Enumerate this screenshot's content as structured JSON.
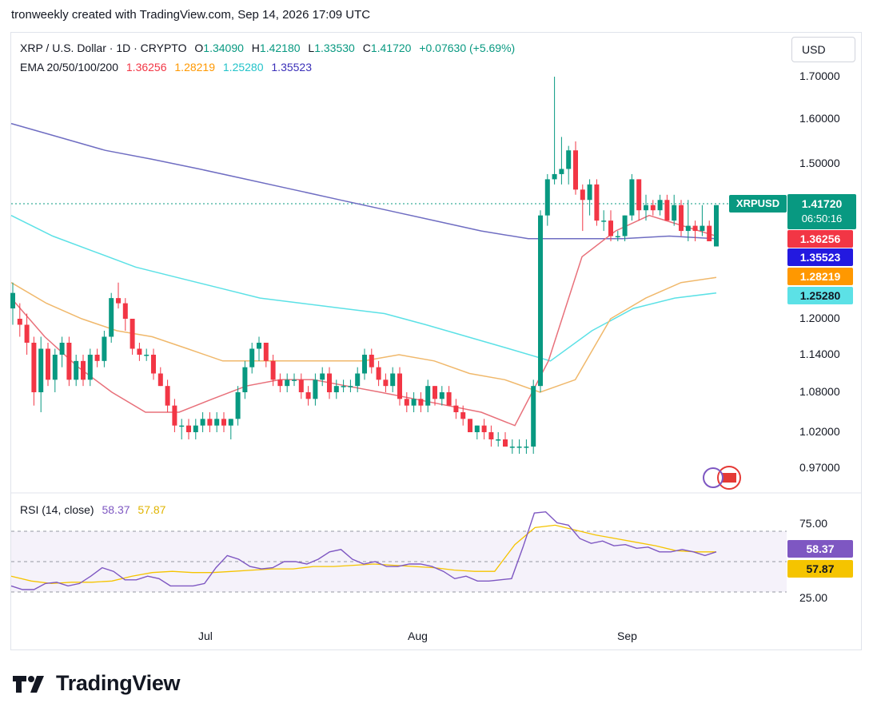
{
  "header": "tronweekly created with TradingView.com, Sep 14, 2026 17:09 UTC",
  "legend": {
    "symbol": "XRP / U.S. Dollar · 1D · CRYPTO",
    "O_label": "O",
    "O": "1.34090",
    "H_label": "H",
    "H": "1.42180",
    "L_label": "L",
    "L": "1.33530",
    "C_label": "C",
    "C": "1.41720",
    "change": "+0.07630 (+5.69%)",
    "ema_label": "EMA 20/50/100/200",
    "ema20": "1.36256",
    "ema50": "1.28219",
    "ema100": "1.25280",
    "ema200": "1.35523"
  },
  "rsi_legend": {
    "label": "RSI (14, close)",
    "rsi": "58.37",
    "ma": "57.87"
  },
  "currency": "USD",
  "price_ticks": [
    "1.70000",
    "1.60000",
    "1.50000",
    "1.20000",
    "1.14000",
    "1.08000",
    "1.02000",
    "0.97000"
  ],
  "rsi_ticks": [
    "75.00",
    "25.00"
  ],
  "tags": {
    "symbol": "XRPUSD",
    "last": "1.41720",
    "countdown": "06:50:16",
    "ema20": "1.36256",
    "ema200": "1.35523",
    "ema50": "1.28219",
    "ema100": "1.25280",
    "rsi": "58.37",
    "rsi_ma": "57.87"
  },
  "months": [
    "Jul",
    "Aug",
    "Sep"
  ],
  "brand": "TradingView",
  "colors": {
    "up": "#089981",
    "down": "#f23645",
    "ema20": "#f23645",
    "ema50": "#ff9800",
    "ema100": "#5ce1e6",
    "ema200": "#2962ff",
    "rsi": "#7e57c2",
    "rsi_ma": "#f5c400",
    "change": "#089981"
  },
  "chart_data": {
    "type": "candlestick",
    "title": "XRP / U.S. Dollar · 1D · CRYPTO",
    "y_axis_ticks": [
      1.7,
      1.6,
      1.5,
      1.2,
      1.14,
      1.08,
      1.02,
      0.97
    ],
    "x_axis_ticks": [
      "Jul",
      "Aug",
      "Sep"
    ],
    "candles_ohlc": [
      [
        1.22,
        1.27,
        1.19,
        1.25
      ],
      [
        1.2,
        1.23,
        1.17,
        1.19
      ],
      [
        1.19,
        1.21,
        1.14,
        1.16
      ],
      [
        1.16,
        1.17,
        1.06,
        1.08
      ],
      [
        1.08,
        1.17,
        1.05,
        1.15
      ],
      [
        1.15,
        1.16,
        1.09,
        1.1
      ],
      [
        1.1,
        1.15,
        1.08,
        1.14
      ],
      [
        1.14,
        1.17,
        1.12,
        1.16
      ],
      [
        1.16,
        1.17,
        1.09,
        1.1
      ],
      [
        1.1,
        1.14,
        1.09,
        1.13
      ],
      [
        1.13,
        1.14,
        1.09,
        1.1
      ],
      [
        1.1,
        1.15,
        1.09,
        1.14
      ],
      [
        1.14,
        1.15,
        1.12,
        1.13
      ],
      [
        1.13,
        1.18,
        1.12,
        1.17
      ],
      [
        1.17,
        1.25,
        1.16,
        1.24
      ],
      [
        1.24,
        1.27,
        1.22,
        1.23
      ],
      [
        1.23,
        1.24,
        1.18,
        1.2
      ],
      [
        1.2,
        1.2,
        1.14,
        1.15
      ],
      [
        1.15,
        1.16,
        1.13,
        1.14
      ],
      [
        1.14,
        1.15,
        1.13,
        1.14
      ],
      [
        1.14,
        1.15,
        1.1,
        1.11
      ],
      [
        1.11,
        1.12,
        1.09,
        1.09
      ],
      [
        1.09,
        1.1,
        1.05,
        1.06
      ],
      [
        1.06,
        1.07,
        1.02,
        1.03
      ],
      [
        1.03,
        1.04,
        1.01,
        1.03
      ],
      [
        1.03,
        1.04,
        1.01,
        1.02
      ],
      [
        1.02,
        1.04,
        1.01,
        1.03
      ],
      [
        1.03,
        1.05,
        1.02,
        1.04
      ],
      [
        1.04,
        1.05,
        1.02,
        1.03
      ],
      [
        1.03,
        1.05,
        1.02,
        1.04
      ],
      [
        1.04,
        1.05,
        1.02,
        1.03
      ],
      [
        1.03,
        1.04,
        1.01,
        1.04
      ],
      [
        1.04,
        1.09,
        1.03,
        1.08
      ],
      [
        1.08,
        1.13,
        1.07,
        1.12
      ],
      [
        1.12,
        1.16,
        1.11,
        1.15
      ],
      [
        1.15,
        1.17,
        1.13,
        1.16
      ],
      [
        1.16,
        1.16,
        1.12,
        1.13
      ],
      [
        1.13,
        1.14,
        1.09,
        1.1
      ],
      [
        1.1,
        1.11,
        1.08,
        1.09
      ],
      [
        1.09,
        1.11,
        1.08,
        1.1
      ],
      [
        1.1,
        1.11,
        1.09,
        1.1
      ],
      [
        1.1,
        1.11,
        1.07,
        1.08
      ],
      [
        1.08,
        1.09,
        1.06,
        1.07
      ],
      [
        1.07,
        1.11,
        1.06,
        1.1
      ],
      [
        1.1,
        1.12,
        1.09,
        1.11
      ],
      [
        1.11,
        1.12,
        1.07,
        1.08
      ],
      [
        1.08,
        1.1,
        1.07,
        1.09
      ],
      [
        1.09,
        1.1,
        1.08,
        1.09
      ],
      [
        1.09,
        1.1,
        1.08,
        1.09
      ],
      [
        1.09,
        1.12,
        1.08,
        1.11
      ],
      [
        1.11,
        1.15,
        1.1,
        1.14
      ],
      [
        1.14,
        1.15,
        1.11,
        1.12
      ],
      [
        1.12,
        1.13,
        1.09,
        1.1
      ],
      [
        1.1,
        1.11,
        1.08,
        1.09
      ],
      [
        1.09,
        1.12,
        1.08,
        1.11
      ],
      [
        1.11,
        1.12,
        1.06,
        1.07
      ],
      [
        1.07,
        1.08,
        1.05,
        1.06
      ],
      [
        1.06,
        1.08,
        1.05,
        1.07
      ],
      [
        1.07,
        1.08,
        1.05,
        1.06
      ],
      [
        1.06,
        1.1,
        1.05,
        1.09
      ],
      [
        1.09,
        1.09,
        1.06,
        1.07
      ],
      [
        1.07,
        1.09,
        1.06,
        1.08
      ],
      [
        1.08,
        1.09,
        1.06,
        1.06
      ],
      [
        1.06,
        1.07,
        1.04,
        1.05
      ],
      [
        1.05,
        1.06,
        1.03,
        1.04
      ],
      [
        1.04,
        1.04,
        1.02,
        1.02
      ],
      [
        1.02,
        1.03,
        1.01,
        1.03
      ],
      [
        1.03,
        1.04,
        1.01,
        1.02
      ],
      [
        1.02,
        1.03,
        1.0,
        1.01
      ],
      [
        1.01,
        1.02,
        1.0,
        1.01
      ],
      [
        1.01,
        1.02,
        1.0,
        1.0
      ],
      [
        1.0,
        1.01,
        0.99,
        1.0
      ],
      [
        1.0,
        1.01,
        0.99,
        1.0
      ],
      [
        1.0,
        1.01,
        0.99,
        1.0
      ],
      [
        1.0,
        1.1,
        0.99,
        1.09
      ],
      [
        1.09,
        1.41,
        1.08,
        1.4
      ],
      [
        1.4,
        1.48,
        1.38,
        1.47
      ],
      [
        1.47,
        1.7,
        1.46,
        1.48
      ],
      [
        1.48,
        1.56,
        1.46,
        1.49
      ],
      [
        1.49,
        1.54,
        1.46,
        1.53
      ],
      [
        1.53,
        1.55,
        1.44,
        1.45
      ],
      [
        1.45,
        1.46,
        1.37,
        1.43
      ],
      [
        1.43,
        1.47,
        1.4,
        1.46
      ],
      [
        1.46,
        1.47,
        1.38,
        1.39
      ],
      [
        1.39,
        1.41,
        1.37,
        1.39
      ],
      [
        1.39,
        1.41,
        1.35,
        1.36
      ],
      [
        1.36,
        1.37,
        1.35,
        1.36
      ],
      [
        1.36,
        1.4,
        1.35,
        1.4
      ],
      [
        1.4,
        1.48,
        1.39,
        1.47
      ],
      [
        1.47,
        1.47,
        1.39,
        1.41
      ],
      [
        1.41,
        1.44,
        1.39,
        1.42
      ],
      [
        1.42,
        1.43,
        1.4,
        1.41
      ],
      [
        1.41,
        1.44,
        1.4,
        1.43
      ],
      [
        1.43,
        1.44,
        1.39,
        1.39
      ],
      [
        1.39,
        1.44,
        1.38,
        1.42
      ],
      [
        1.42,
        1.43,
        1.36,
        1.37
      ],
      [
        1.37,
        1.43,
        1.35,
        1.38
      ],
      [
        1.38,
        1.39,
        1.35,
        1.37
      ],
      [
        1.37,
        1.42,
        1.36,
        1.38
      ],
      [
        1.38,
        1.39,
        1.35,
        1.35
      ],
      [
        1.34,
        1.42,
        1.34,
        1.42
      ]
    ],
    "ema20": [
      1.24,
      1.17,
      1.12,
      1.08,
      1.05,
      1.05,
      1.07,
      1.09,
      1.1,
      1.1,
      1.09,
      1.08,
      1.07,
      1.06,
      1.05,
      1.03,
      1.13,
      1.32,
      1.37,
      1.4,
      1.38,
      1.36
    ],
    "ema50": [
      1.27,
      1.23,
      1.2,
      1.18,
      1.17,
      1.15,
      1.13,
      1.13,
      1.13,
      1.13,
      1.13,
      1.14,
      1.13,
      1.11,
      1.1,
      1.08,
      1.1,
      1.2,
      1.24,
      1.27,
      1.28
    ],
    "ema100": [
      1.4,
      1.36,
      1.33,
      1.3,
      1.28,
      1.26,
      1.24,
      1.23,
      1.22,
      1.21,
      1.19,
      1.17,
      1.15,
      1.13,
      1.18,
      1.22,
      1.24,
      1.25
    ],
    "ema200": [
      1.59,
      1.56,
      1.53,
      1.51,
      1.49,
      1.47,
      1.45,
      1.43,
      1.41,
      1.39,
      1.37,
      1.355,
      1.355,
      1.355,
      1.36,
      1.355
    ],
    "rsi": [
      30,
      27,
      27,
      32,
      33,
      30,
      32,
      38,
      45,
      42,
      35,
      35,
      38,
      36,
      30,
      30,
      30,
      32,
      45,
      55,
      52,
      46,
      44,
      45,
      50,
      50,
      48,
      52,
      58,
      60,
      52,
      48,
      50,
      46,
      46,
      48,
      48,
      46,
      42,
      36,
      38,
      34,
      34,
      35,
      36,
      62,
      90,
      91,
      82,
      80,
      69,
      65,
      67,
      63,
      64,
      61,
      62,
      58,
      58,
      60,
      58,
      55,
      58
    ],
    "rsi_ma": [
      38,
      34,
      32,
      33,
      33,
      34,
      38,
      41,
      42,
      41,
      41,
      42,
      43,
      44,
      44,
      46,
      46,
      47,
      48,
      47,
      46,
      45,
      43,
      42,
      42,
      64,
      78,
      80,
      76,
      72,
      69,
      66,
      63,
      59,
      58,
      58
    ]
  }
}
